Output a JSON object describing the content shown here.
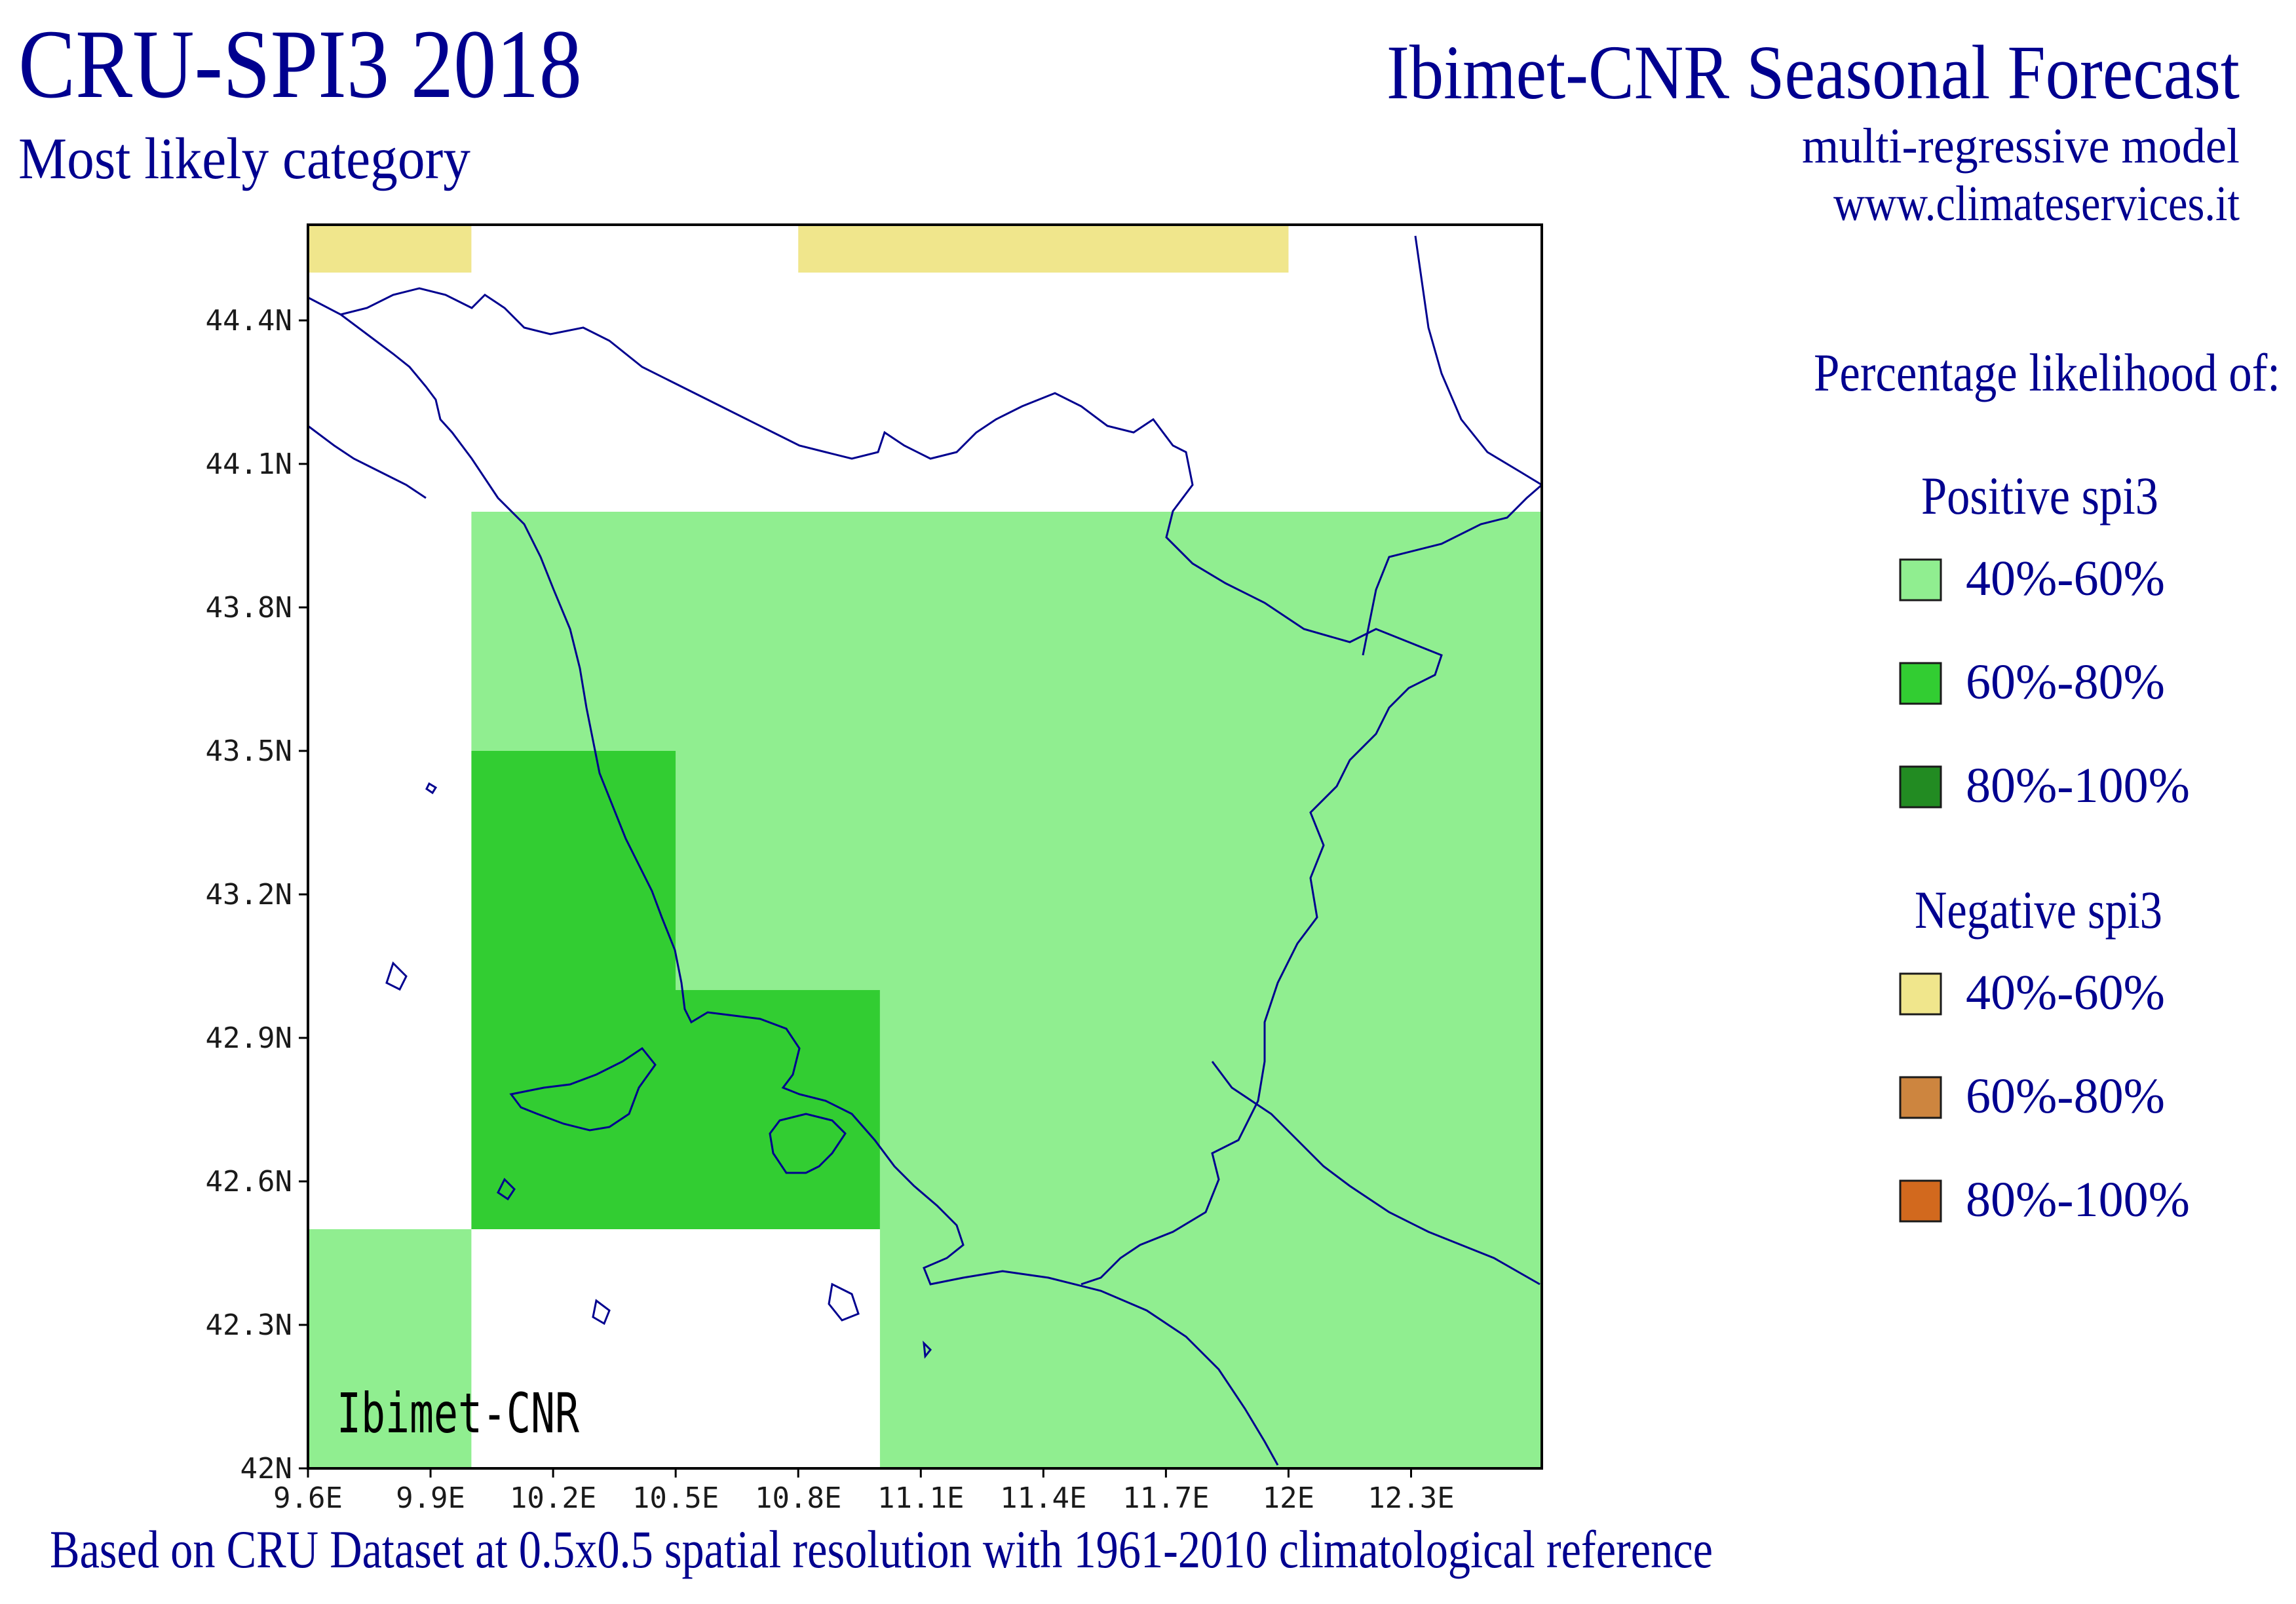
{
  "header": {
    "title": "CRU-SPI3 2018",
    "subtitle": "Most likely category",
    "org_title": "Ibimet-CNR Seasonal Forecast",
    "model": "multi-regressive model",
    "url": "www.climateservices.it"
  },
  "map": {
    "watermark": "Ibimet-CNR",
    "x_ticks": [
      "9.6E",
      "9.9E",
      "10.2E",
      "10.5E",
      "10.8E",
      "11.1E",
      "11.4E",
      "11.7E",
      "12E",
      "12.3E"
    ],
    "y_ticks": [
      "44.4N",
      "44.1N",
      "43.8N",
      "43.5N",
      "43.2N",
      "42.9N",
      "42.6N",
      "42.3N",
      "42N"
    ],
    "cells": [
      {
        "lon0": 9.6,
        "lon1": 10.0,
        "lat0": 44.5,
        "lat1": 44.6,
        "category": "neg_40_60"
      },
      {
        "lon0": 10.8,
        "lon1": 12.0,
        "lat0": 44.5,
        "lat1": 44.6,
        "category": "neg_40_60"
      },
      {
        "lon0": 10.0,
        "lon1": 13.0,
        "lat0": 43.5,
        "lat1": 44.0,
        "category": "pos_40_60"
      },
      {
        "lon0": 10.5,
        "lon1": 13.0,
        "lat0": 43.0,
        "lat1": 43.5,
        "category": "pos_40_60"
      },
      {
        "lon0": 11.0,
        "lon1": 13.0,
        "lat0": 42.5,
        "lat1": 43.0,
        "category": "pos_40_60"
      },
      {
        "lon0": 11.0,
        "lon1": 13.0,
        "lat0": 42.0,
        "lat1": 42.5,
        "category": "pos_40_60"
      },
      {
        "lon0": 9.6,
        "lon1": 10.0,
        "lat0": 42.0,
        "lat1": 42.5,
        "category": "pos_40_60"
      },
      {
        "lon0": 10.0,
        "lon1": 10.5,
        "lat0": 43.0,
        "lat1": 43.5,
        "category": "pos_60_80"
      },
      {
        "lon0": 10.0,
        "lon1": 11.0,
        "lat0": 42.5,
        "lat1": 43.0,
        "category": "pos_60_80"
      }
    ]
  },
  "legend": {
    "heading": "Percentage likelihood of:",
    "positive": {
      "title": "Positive spi3",
      "items": [
        {
          "label": "40%-60%",
          "color": "#90ee90"
        },
        {
          "label": "60%-80%",
          "color": "#32cd32"
        },
        {
          "label": "80%-100%",
          "color": "#228b22"
        }
      ]
    },
    "negative": {
      "title": "Negative spi3",
      "items": [
        {
          "label": "40%-60%",
          "color": "#f0e68c"
        },
        {
          "label": "60%-80%",
          "color": "#cd853f"
        },
        {
          "label": "80%-100%",
          "color": "#d2691e"
        }
      ]
    }
  },
  "colors": {
    "pos_40_60": "#90ee90",
    "pos_60_80": "#32cd32",
    "neg_40_60": "#f0e68c",
    "text": "#00008f"
  },
  "footer": {
    "note": "Based on CRU Dataset at 0.5x0.5 spatial resolution with 1961-2010 climatological reference"
  }
}
